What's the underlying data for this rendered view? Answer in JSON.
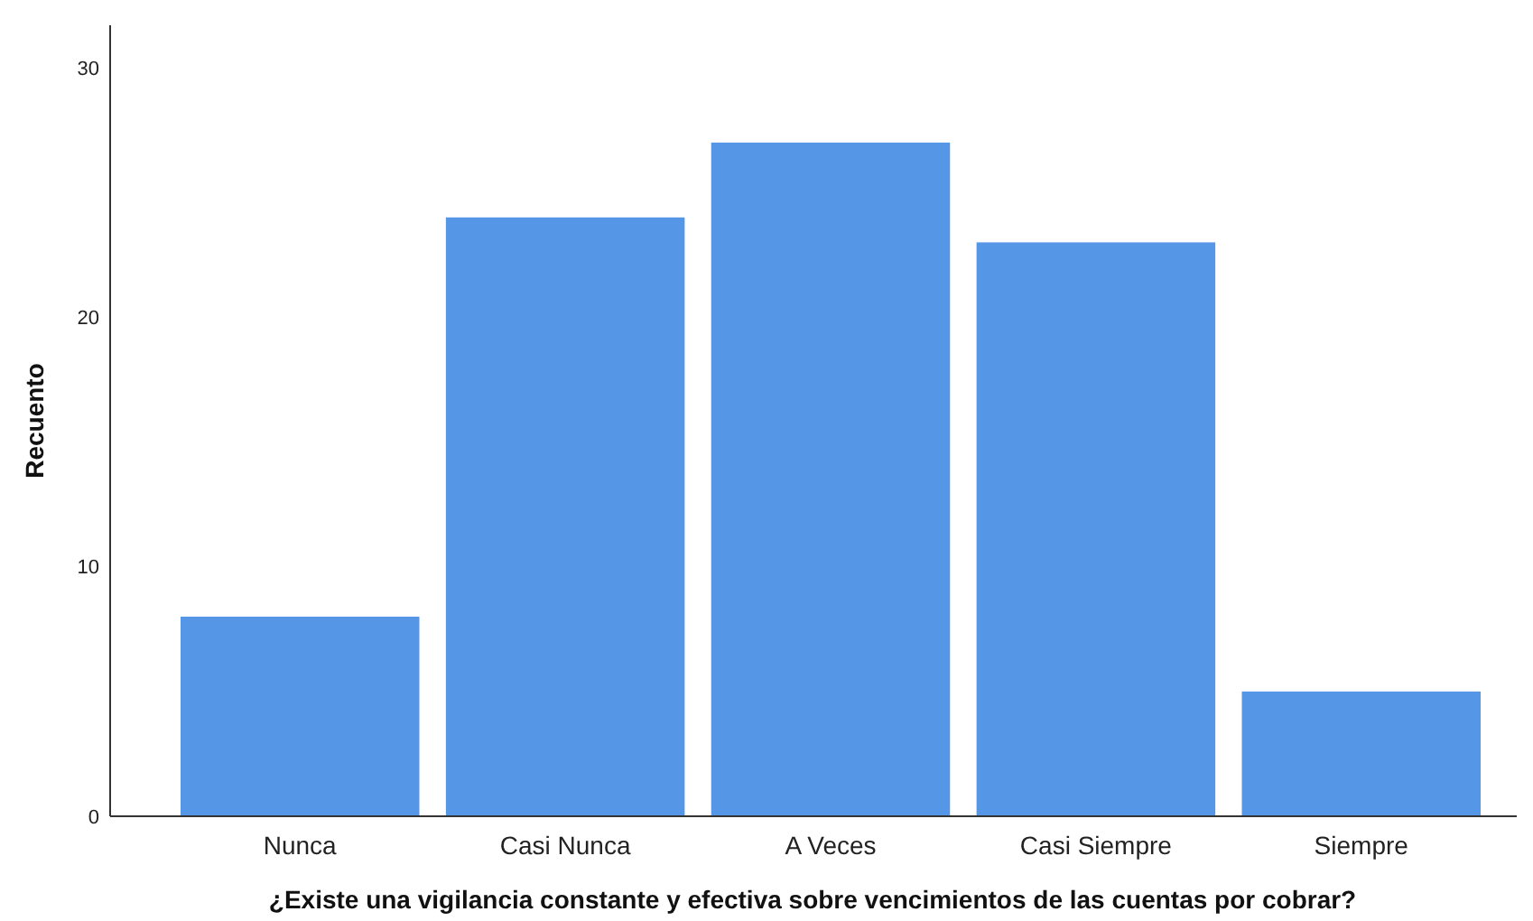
{
  "chart_data": {
    "type": "bar",
    "xlabel": "¿Existe una vigilancia constante y efectiva sobre vencimientos de las cuentas por cobrar?",
    "ylabel": "Recuento",
    "categories": [
      "Nunca",
      "Casi Nunca",
      "A Veces",
      "Casi Siempre",
      "Siempre"
    ],
    "values": [
      8,
      24,
      27,
      23,
      5
    ],
    "color": "#5596e6",
    "ylim": [
      0,
      31.7
    ],
    "yticks": [
      0,
      10,
      20,
      30
    ],
    "grid": false
  }
}
